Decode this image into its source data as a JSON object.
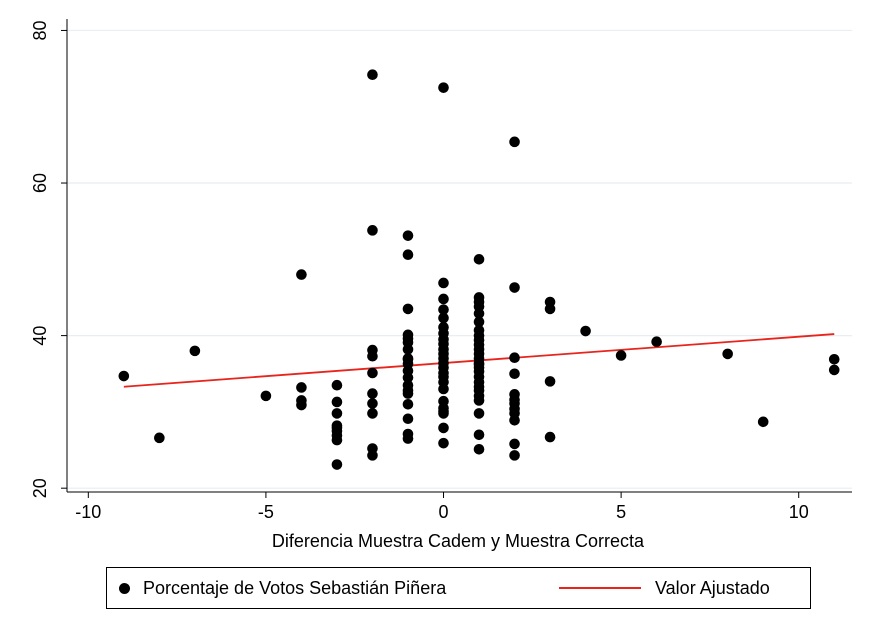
{
  "chart_data": {
    "type": "scatter",
    "title": "",
    "xlabel": "Diferencia Muestra Cadem y Muestra Correcta",
    "ylabel": "",
    "xlim": [
      -10.6,
      11.5
    ],
    "ylim": [
      19.5,
      81.5
    ],
    "xticks": [
      -10,
      -5,
      0,
      5,
      10
    ],
    "xtick_labels": [
      "-10",
      "-5",
      "0",
      "5",
      "10"
    ],
    "yticks": [
      20,
      40,
      60,
      80
    ],
    "ytick_labels": [
      "20",
      "40",
      "60",
      "80"
    ],
    "grid": true,
    "legend_position": "bottom",
    "colors": {
      "points": "#000000",
      "fit": "#e8251d",
      "grid": "#e8eef2"
    },
    "series": [
      {
        "name": "Porcentaje de Votos Sebastián Piñera",
        "type": "scatter",
        "x": [
          -9,
          -8,
          -7,
          -5,
          -4,
          -4,
          -4,
          -4,
          -3,
          -3,
          -3,
          -3,
          -3,
          -3,
          -3,
          -3,
          -3,
          -2,
          -2,
          -2,
          -2,
          -2,
          -2,
          -2,
          -2,
          -2,
          -2,
          -1,
          -1,
          -1,
          -1,
          -1,
          -1,
          -1,
          -1,
          -1,
          -1,
          -1,
          -1,
          -1,
          -1,
          -1,
          -1,
          -1,
          -1,
          -1,
          0,
          0,
          0,
          0,
          0,
          0,
          0,
          0,
          0,
          0,
          0,
          0,
          0,
          0,
          0,
          0,
          0,
          0,
          0,
          0,
          0,
          0,
          0,
          0,
          1,
          1,
          1,
          1,
          1,
          1,
          1,
          1,
          1,
          1,
          1,
          1,
          1,
          1,
          1,
          1,
          1,
          1,
          1,
          1,
          1,
          1,
          1,
          1,
          1,
          1,
          2,
          2,
          2,
          2,
          2,
          2,
          2,
          2,
          2,
          2,
          2,
          2,
          3,
          3,
          3,
          3,
          4,
          5,
          6,
          8,
          9,
          11,
          11
        ],
        "y": [
          34.7,
          26.6,
          38.0,
          32.1,
          48.0,
          33.2,
          31.5,
          30.9,
          33.5,
          31.3,
          29.8,
          28.2,
          27.5,
          26.9,
          26.3,
          23.1,
          27.9,
          53.8,
          38.1,
          37.3,
          35.1,
          32.4,
          31.1,
          29.8,
          25.2,
          24.3,
          74.2,
          53.1,
          50.6,
          43.5,
          40.1,
          39.6,
          38.2,
          37.0,
          36.3,
          35.4,
          33.5,
          32.4,
          31.0,
          29.1,
          27.1,
          26.5,
          39.1,
          36.9,
          34.5,
          32.8,
          72.5,
          46.9,
          44.8,
          43.4,
          42.3,
          41.1,
          40.3,
          39.5,
          38.9,
          38.2,
          37.6,
          37.0,
          36.4,
          35.8,
          35.1,
          34.6,
          33.9,
          33.0,
          31.4,
          30.5,
          30.1,
          29.8,
          27.9,
          25.9,
          50.0,
          45.0,
          44.4,
          43.8,
          42.9,
          41.8,
          40.7,
          40.0,
          39.4,
          38.8,
          38.2,
          37.6,
          37.0,
          36.4,
          35.8,
          35.3,
          34.6,
          33.9,
          33.3,
          32.8,
          32.1,
          31.5,
          29.8,
          27.0,
          25.1,
          36.2,
          65.4,
          46.3,
          37.1,
          35.0,
          32.3,
          31.1,
          30.4,
          29.8,
          28.9,
          25.8,
          24.3,
          31.6,
          44.4,
          43.5,
          34.0,
          26.7,
          40.6,
          37.4,
          39.2,
          37.6,
          28.7,
          36.9,
          35.5
        ]
      },
      {
        "name": "Valor Ajustado",
        "type": "line",
        "x": [
          -9,
          11
        ],
        "y": [
          33.3,
          40.2
        ]
      }
    ]
  }
}
